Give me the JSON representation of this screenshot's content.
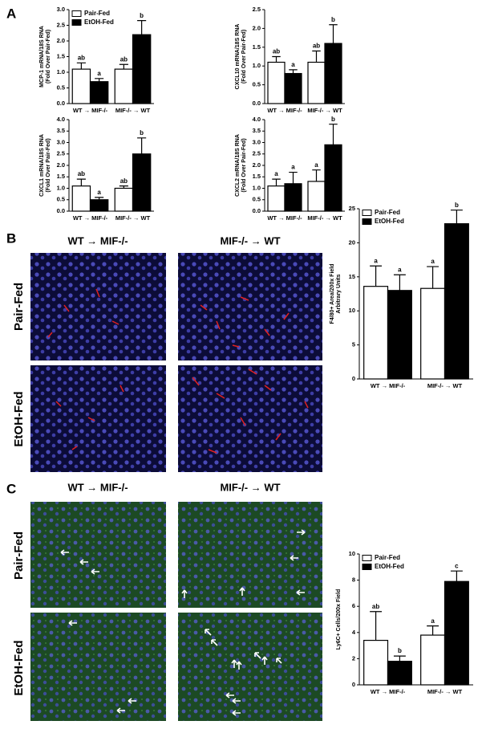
{
  "panel_labels": [
    "A",
    "B",
    "C"
  ],
  "image_columns": [
    "WT → MIF-/-",
    "MIF-/- → WT"
  ],
  "image_rows": [
    "Pair-Fed",
    "EtOH-Fed"
  ],
  "chart_data": [
    {
      "type": "bar",
      "ylabel": [
        "MCP-1 mRNA/18S RNA",
        "(Fold Over Pair-Fed)"
      ],
      "categories": [
        "WT → MIF-/-",
        "MIF-/- → WT"
      ],
      "series": [
        {
          "name": "Pair-Fed",
          "color": "#ffffff",
          "values": [
            1.1,
            1.1
          ],
          "errors": [
            0.2,
            0.15
          ],
          "letters": [
            "ab",
            "ab"
          ]
        },
        {
          "name": "EtOH-Fed",
          "color": "#000000",
          "values": [
            0.7,
            2.2
          ],
          "errors": [
            0.1,
            0.45
          ],
          "letters": [
            "a",
            "b"
          ]
        }
      ],
      "ylim": [
        0,
        3
      ],
      "yticks": [
        {
          "value": 0,
          "label": "0.0"
        },
        0.5,
        {
          "value": 1,
          "label": "1.0"
        },
        1.5,
        {
          "value": 2,
          "label": "2.0"
        },
        2.5,
        {
          "value": 3,
          "label": "3.0"
        }
      ],
      "legend": "upper left",
      "grid": false
    },
    {
      "type": "bar",
      "ylabel": [
        "CXCL10 mRNA/18S RNA",
        "(Fold Over Pair-Fed)"
      ],
      "categories": [
        "WT → MIF-/-",
        "MIF-/- → WT"
      ],
      "series": [
        {
          "color": "#ffffff",
          "values": [
            1.1,
            1.1
          ],
          "errors": [
            0.15,
            0.3
          ],
          "letters": [
            "ab",
            "ab"
          ]
        },
        {
          "color": "#000000",
          "values": [
            0.8,
            1.6
          ],
          "errors": [
            0.1,
            0.5
          ],
          "letters": [
            "a",
            "b"
          ]
        }
      ],
      "ylim": [
        0,
        2.5
      ],
      "yticks": [
        {
          "value": 0,
          "label": "0.0"
        },
        0.5,
        {
          "value": 1,
          "label": "1.0"
        },
        1.5,
        {
          "value": 2,
          "label": "2.0"
        },
        2.5
      ],
      "grid": false
    },
    {
      "type": "bar",
      "ylabel": [
        "CXCL1 mRNA/18S RNA",
        "(Fold Over Pair-Fed)"
      ],
      "categories": [
        "WT → MIF-/-",
        "MIF-/- → WT"
      ],
      "series": [
        {
          "color": "#ffffff",
          "values": [
            1.1,
            1.0
          ],
          "errors": [
            0.3,
            0.1
          ],
          "letters": [
            "ab",
            "ab"
          ]
        },
        {
          "color": "#000000",
          "values": [
            0.5,
            2.5
          ],
          "errors": [
            0.1,
            0.7
          ],
          "letters": [
            "a",
            "b"
          ]
        }
      ],
      "ylim": [
        0,
        4
      ],
      "yticks": [
        {
          "value": 0,
          "label": "0.0"
        },
        0.5,
        {
          "value": 1,
          "label": "1.0"
        },
        1.5,
        {
          "value": 2,
          "label": "2.0"
        },
        2.5,
        {
          "value": 3,
          "label": "3.0"
        },
        3.5,
        {
          "value": 4,
          "label": "4.0"
        }
      ],
      "grid": false
    },
    {
      "type": "bar",
      "ylabel": [
        "CXCL2 mRNA/18S RNA",
        "(Fold Over Pair-Fed)"
      ],
      "categories": [
        "WT → MIF-/-",
        "MIF-/- → WT"
      ],
      "series": [
        {
          "color": "#ffffff",
          "values": [
            1.1,
            1.3
          ],
          "errors": [
            0.3,
            0.5
          ],
          "letters": [
            "a",
            "a"
          ]
        },
        {
          "color": "#000000",
          "values": [
            1.2,
            2.9
          ],
          "errors": [
            0.5,
            0.9
          ],
          "letters": [
            "a",
            "b"
          ]
        }
      ],
      "ylim": [
        0,
        4
      ],
      "yticks": [
        {
          "value": 0,
          "label": "0.0"
        },
        0.5,
        {
          "value": 1,
          "label": "1.0"
        },
        1.5,
        {
          "value": 2,
          "label": "2.0"
        },
        2.5,
        {
          "value": 3,
          "label": "3.0"
        },
        3.5,
        {
          "value": 4,
          "label": "4.0"
        }
      ],
      "grid": false
    },
    {
      "type": "bar",
      "ylabel": [
        "F4/80+ Area/200x Field",
        "Arbitrary Units"
      ],
      "categories": [
        "WT → MIF-/-",
        "MIF-/- → WT"
      ],
      "series": [
        {
          "name": "Pair-Fed",
          "color": "#ffffff",
          "values": [
            13.6,
            13.3
          ],
          "errors": [
            3,
            3.2
          ],
          "letters": [
            "a",
            "a"
          ]
        },
        {
          "name": "EtOH-Fed",
          "color": "#000000",
          "values": [
            13,
            22.8
          ],
          "errors": [
            2.3,
            2
          ],
          "letters": [
            "a",
            "b"
          ]
        }
      ],
      "ylim": [
        0,
        25
      ],
      "yticks": [
        0,
        5,
        10,
        15,
        20,
        25
      ],
      "legend": "upper left",
      "grid": false
    },
    {
      "type": "bar",
      "ylabel": [
        "Ly6C+ Cells/200x Field"
      ],
      "categories": [
        "WT → MIF-/-",
        "MIF-/- → WT"
      ],
      "series": [
        {
          "name": "Pair-Fed",
          "color": "#ffffff",
          "values": [
            3.4,
            3.8
          ],
          "errors": [
            2.2,
            0.7
          ],
          "letters": [
            "ab",
            "a"
          ]
        },
        {
          "name": "EtOH-Fed",
          "color": "#000000",
          "values": [
            1.8,
            7.9
          ],
          "errors": [
            0.4,
            0.8
          ],
          "letters": [
            "b",
            "c"
          ]
        }
      ],
      "ylim": [
        0,
        10
      ],
      "yticks": [
        0,
        2,
        4,
        6,
        8,
        10
      ],
      "legend": "upper left",
      "grid": false
    }
  ]
}
